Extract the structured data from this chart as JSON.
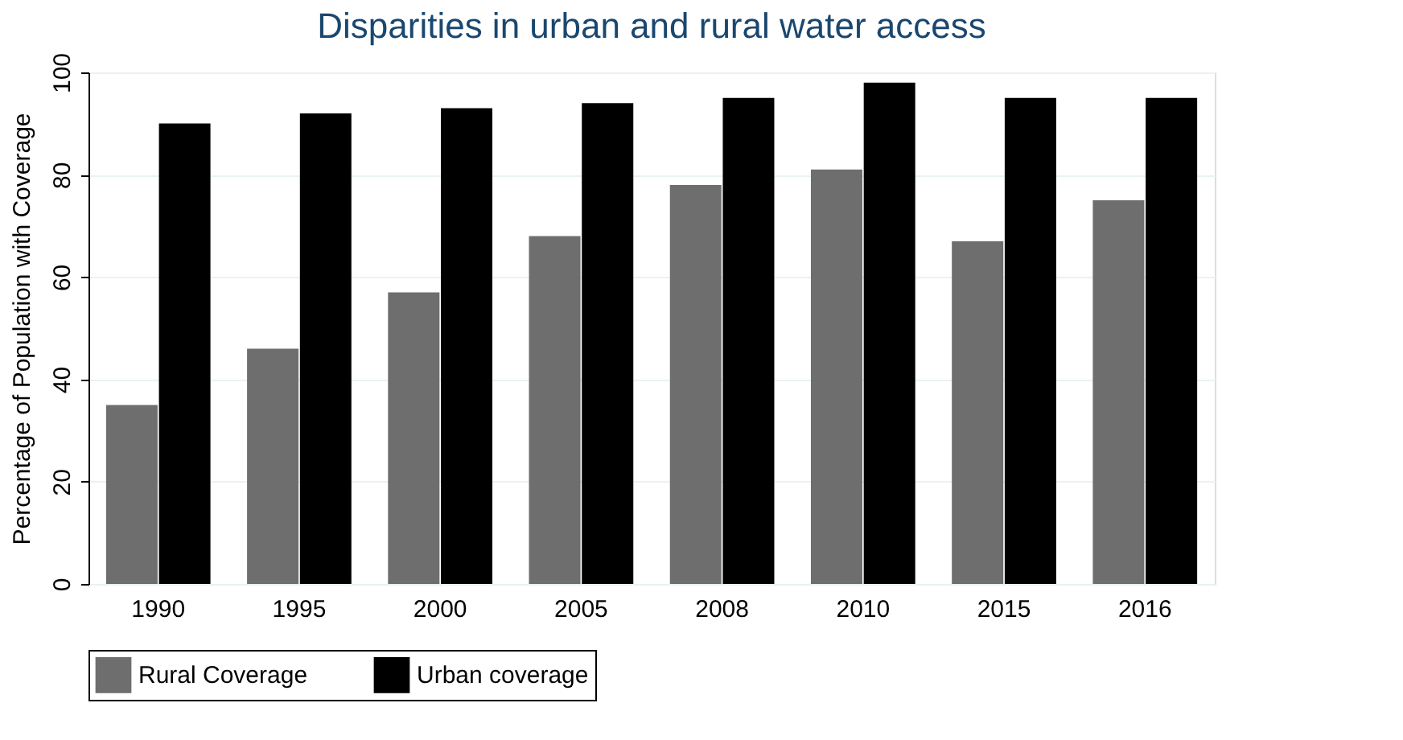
{
  "chart_data": {
    "type": "bar",
    "title": "Disparities in urban and rural water access",
    "ylabel": "Percentage of Population with Coverage",
    "categories": [
      "1990",
      "1995",
      "2000",
      "2005",
      "2008",
      "2010",
      "2015",
      "2016"
    ],
    "series": [
      {
        "name": "Rural Coverage",
        "color": "#6e6e6e",
        "values": [
          35,
          46,
          57,
          68,
          78,
          81,
          67,
          75
        ]
      },
      {
        "name": "Urban coverage",
        "color": "#000000",
        "values": [
          90,
          92,
          93,
          94,
          95,
          98,
          95,
          95
        ]
      }
    ],
    "ylim": [
      0,
      100
    ],
    "yticks": [
      0,
      20,
      40,
      60,
      80,
      100
    ],
    "grid": "y",
    "legend": "bottom"
  }
}
